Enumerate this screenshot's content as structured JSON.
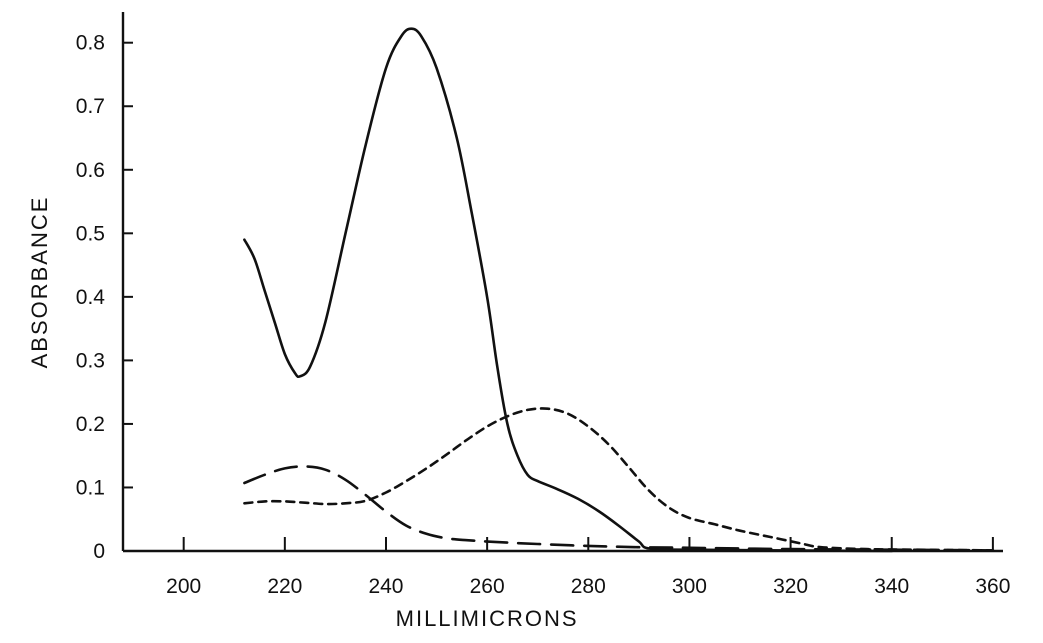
{
  "chart_data": {
    "type": "line",
    "title": "",
    "xlabel": "MILLIMICRONS",
    "ylabel": "ABSORBANCE",
    "xlim": [
      188,
      362
    ],
    "ylim": [
      0,
      0.82
    ],
    "x_ticks": [
      200,
      220,
      240,
      260,
      280,
      300,
      320,
      340,
      360
    ],
    "y_ticks": [
      0,
      0.1,
      0.2,
      0.3,
      0.4,
      0.5,
      0.6,
      0.7,
      0.8
    ],
    "x_tick_labels": [
      "200",
      "220",
      "240",
      "260",
      "280",
      "300",
      "320",
      "340",
      "360"
    ],
    "y_tick_labels": [
      "0",
      "0.1",
      "0.2",
      "0.3",
      "0.4",
      "0.5",
      "0.6",
      "0.7",
      "0.8"
    ],
    "grid": false,
    "legend": "none",
    "series": [
      {
        "style": "solid",
        "points": [
          [
            212,
            0.49
          ],
          [
            214,
            0.46
          ],
          [
            216,
            0.41
          ],
          [
            218,
            0.36
          ],
          [
            220,
            0.31
          ],
          [
            222,
            0.28
          ],
          [
            223,
            0.275
          ],
          [
            225,
            0.29
          ],
          [
            228,
            0.36
          ],
          [
            232,
            0.5
          ],
          [
            236,
            0.64
          ],
          [
            240,
            0.76
          ],
          [
            243,
            0.81
          ],
          [
            245,
            0.822
          ],
          [
            247,
            0.81
          ],
          [
            250,
            0.76
          ],
          [
            254,
            0.65
          ],
          [
            257,
            0.53
          ],
          [
            260,
            0.4
          ],
          [
            262,
            0.29
          ],
          [
            264,
            0.2
          ],
          [
            266,
            0.15
          ],
          [
            268,
            0.12
          ],
          [
            270,
            0.11
          ],
          [
            274,
            0.097
          ],
          [
            278,
            0.082
          ],
          [
            282,
            0.063
          ],
          [
            286,
            0.04
          ],
          [
            290,
            0.015
          ],
          [
            292,
            0.004
          ],
          [
            300,
            0.002
          ],
          [
            340,
            0.0
          ]
        ]
      },
      {
        "style": "long-dash",
        "points": [
          [
            212,
            0.107
          ],
          [
            216,
            0.12
          ],
          [
            220,
            0.13
          ],
          [
            224,
            0.133
          ],
          [
            228,
            0.128
          ],
          [
            232,
            0.112
          ],
          [
            236,
            0.088
          ],
          [
            240,
            0.062
          ],
          [
            244,
            0.04
          ],
          [
            248,
            0.027
          ],
          [
            252,
            0.02
          ],
          [
            256,
            0.017
          ],
          [
            262,
            0.014
          ],
          [
            270,
            0.011
          ],
          [
            280,
            0.008
          ],
          [
            290,
            0.006
          ],
          [
            300,
            0.005
          ],
          [
            320,
            0.003
          ],
          [
            340,
            0.002
          ],
          [
            360,
            0.001
          ]
        ]
      },
      {
        "style": "short-dash",
        "points": [
          [
            212,
            0.075
          ],
          [
            216,
            0.078
          ],
          [
            220,
            0.078
          ],
          [
            224,
            0.076
          ],
          [
            228,
            0.074
          ],
          [
            232,
            0.075
          ],
          [
            236,
            0.079
          ],
          [
            240,
            0.092
          ],
          [
            244,
            0.11
          ],
          [
            248,
            0.13
          ],
          [
            252,
            0.152
          ],
          [
            256,
            0.175
          ],
          [
            260,
            0.196
          ],
          [
            264,
            0.212
          ],
          [
            268,
            0.222
          ],
          [
            272,
            0.224
          ],
          [
            276,
            0.216
          ],
          [
            280,
            0.196
          ],
          [
            284,
            0.168
          ],
          [
            288,
            0.132
          ],
          [
            292,
            0.095
          ],
          [
            296,
            0.068
          ],
          [
            300,
            0.052
          ],
          [
            305,
            0.042
          ],
          [
            310,
            0.032
          ],
          [
            316,
            0.022
          ],
          [
            322,
            0.012
          ],
          [
            326,
            0.006
          ],
          [
            335,
            0.003
          ],
          [
            345,
            0.002
          ],
          [
            360,
            0.001
          ]
        ]
      }
    ]
  }
}
